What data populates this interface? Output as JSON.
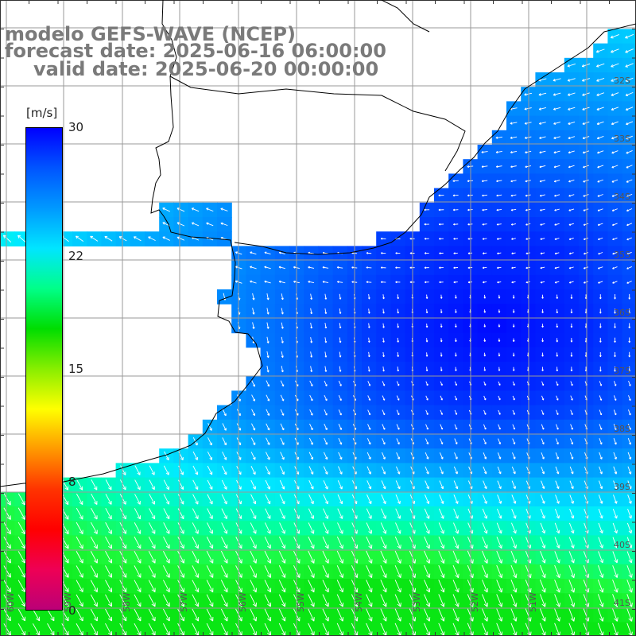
{
  "title": {
    "line1": "modelo GEFS-WAVE (NCEP)",
    "line2": "forecast date: 2025-06-16 06:00:00",
    "line3": "valid date: 2025-06-20 00:00:00"
  },
  "colorbar": {
    "unit": "[m/s]",
    "ticks": [
      "30",
      "22",
      "15",
      "8",
      "0"
    ],
    "tick_values": [
      30,
      22,
      15,
      8,
      0
    ],
    "colors": [
      "#0000ff",
      "#0055ff",
      "#0099ff",
      "#00e5ff",
      "#00ff88",
      "#00dd00",
      "#88ee00",
      "#ffff00",
      "#ff9900",
      "#ff3300",
      "#ff0000",
      "#ee0055",
      "#bb0077"
    ]
  },
  "map": {
    "lat_labels": [
      "32S",
      "33S",
      "34S",
      "35S",
      "36S",
      "37S",
      "38S",
      "39S",
      "40S",
      "41S"
    ],
    "lon_labels": [
      "60W",
      "59W",
      "58W",
      "57W",
      "56W",
      "55W",
      "54W",
      "53W",
      "52W",
      "51W"
    ],
    "ocean_colors": {
      "calm": "#0033ee",
      "low": "#0077ff",
      "moderate": "#00ccff",
      "fresh": "#00ffaa",
      "strong": "#33ee33"
    },
    "land_color": "#ffffff",
    "arrow_color": "#ffffff"
  }
}
